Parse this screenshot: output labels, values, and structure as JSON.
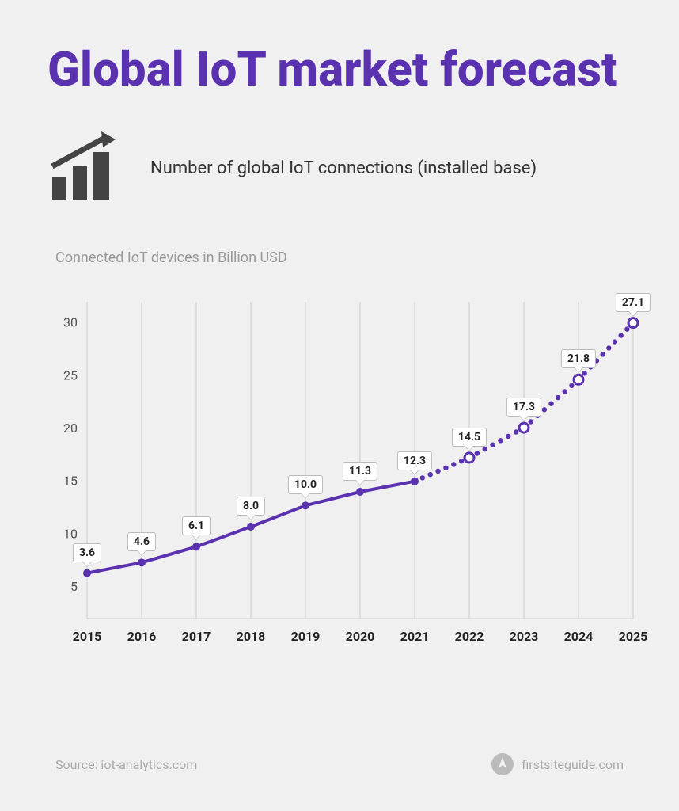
{
  "title": "Global IoT market forecast",
  "subtitle": "Number of global IoT connections (installed base)",
  "chart": {
    "type": "line",
    "axis_label": "Connected IoT devices in Billion USD",
    "categories": [
      "2015",
      "2016",
      "2017",
      "2018",
      "2019",
      "2020",
      "2021",
      "2022",
      "2023",
      "2024",
      "2025"
    ],
    "values": [
      3.6,
      4.6,
      6.1,
      8.0,
      10.0,
      11.3,
      12.3,
      14.5,
      17.3,
      21.8,
      27.1
    ],
    "value_labels": [
      "3.6",
      "4.6",
      "6.1",
      "8.0",
      "10.0",
      "11.3",
      "12.3",
      "14.5",
      "17.3",
      "21.8",
      "27.1"
    ],
    "solid_until_index": 6,
    "yticks": [
      5,
      10,
      15,
      20,
      25,
      30
    ],
    "ylim": [
      2,
      32
    ],
    "line_color": "#5a32b0",
    "title_color": "#5a32b0",
    "grid_color": "#cccccc",
    "axis_text_color": "#555555",
    "axis_label_color": "#999999",
    "label_border_color": "#bbbbbb",
    "background_color": "#f0f0f0",
    "icon_color": "#444444",
    "line_width": 4,
    "marker_radius": 5,
    "dot_radius": 3.2,
    "title_fontsize": 60,
    "subtitle_fontsize": 22,
    "axis_fontsize": 16,
    "xaxis_fontweight": 700
  },
  "footer": {
    "source_prefix": "Source:  ",
    "source": "iot-analytics.com",
    "site": "firstsiteguide.com"
  }
}
